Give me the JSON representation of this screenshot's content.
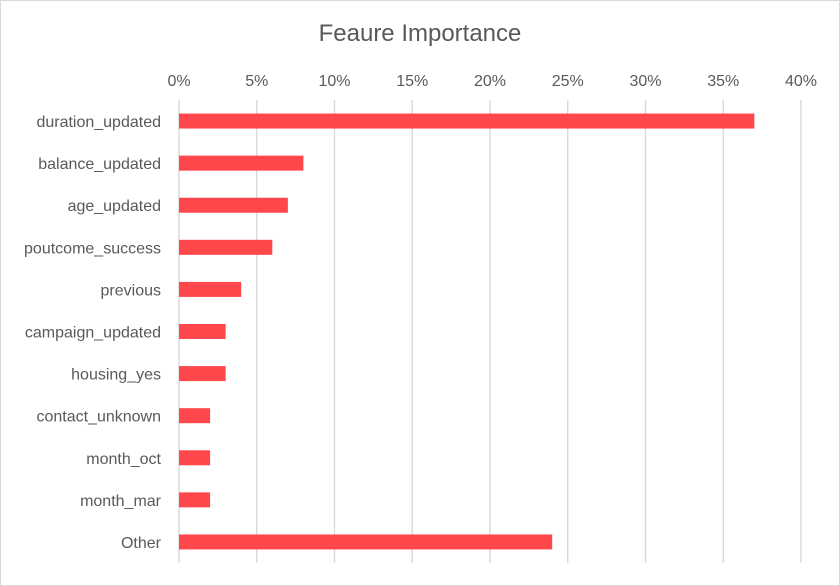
{
  "chart_data": {
    "type": "bar",
    "orientation": "horizontal",
    "title": "Feaure Importance",
    "xlabel": "",
    "ylabel": "",
    "xlim": [
      0,
      0.4
    ],
    "x_ticks": [
      "0%",
      "5%",
      "10%",
      "15%",
      "20%",
      "25%",
      "30%",
      "35%",
      "40%"
    ],
    "x_axis_position": "top",
    "grid": true,
    "legend": "none",
    "bar_color": "#ff474c",
    "categories": [
      "duration_updated",
      "balance_updated",
      "age_updated",
      "poutcome_success",
      "previous",
      "campaign_updated",
      "housing_yes",
      "contact_unknown",
      "month_oct",
      "month_mar",
      "Other"
    ],
    "values": [
      0.37,
      0.08,
      0.07,
      0.06,
      0.04,
      0.03,
      0.03,
      0.02,
      0.02,
      0.02,
      0.24
    ]
  }
}
